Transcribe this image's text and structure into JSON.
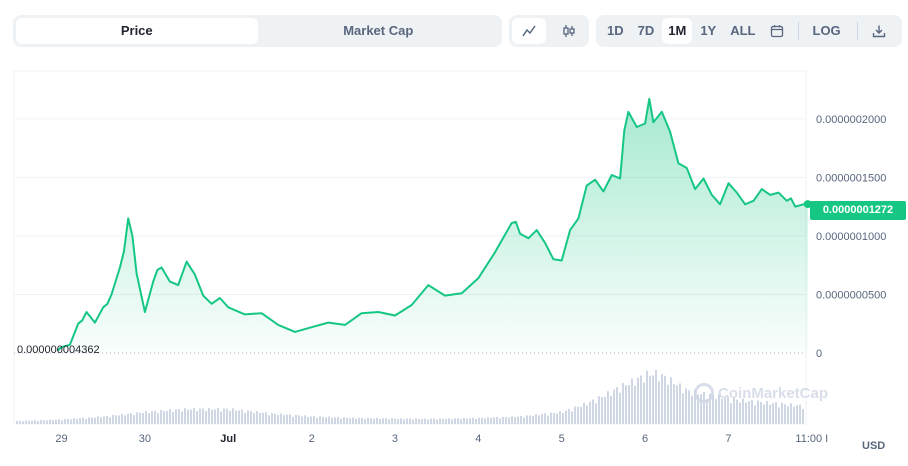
{
  "toolbar": {
    "tabs": [
      {
        "label": "Price",
        "active": true
      },
      {
        "label": "Market Cap",
        "active": false
      }
    ],
    "chart_modes": [
      {
        "icon": "line-chart-icon",
        "active": true
      },
      {
        "icon": "candlestick-icon",
        "active": false
      }
    ],
    "ranges": [
      {
        "label": "1D",
        "active": false
      },
      {
        "label": "7D",
        "active": false
      },
      {
        "label": "1M",
        "active": true
      },
      {
        "label": "1Y",
        "active": false
      },
      {
        "label": "ALL",
        "active": false
      }
    ],
    "calendar_icon": "calendar-icon",
    "log_label": "LOG",
    "download_icon": "download-icon"
  },
  "current_price_label": "0.0000001272",
  "min_price_label": "0.000000004362",
  "currency": "USD",
  "watermark": "CoinMarketCap",
  "colors": {
    "line": "#16c784",
    "volume": "#cfd6e4",
    "grid": "#eff2f5"
  },
  "chart_data": {
    "type": "area",
    "x_labels": [
      "29",
      "30",
      "Jul",
      "2",
      "3",
      "4",
      "5",
      "6",
      "7",
      "11:00 I"
    ],
    "y_ticks": [
      {
        "value": 0,
        "label": "0"
      },
      {
        "value": 5e-08,
        "label": "0.0000000500"
      },
      {
        "value": 1e-07,
        "label": "0.0000001000"
      },
      {
        "value": 1.5e-07,
        "label": "0.0000001500"
      },
      {
        "value": 2e-07,
        "label": "0.0000002000"
      }
    ],
    "ylim": [
      0,
      2.4e-07
    ],
    "x_range": [
      -0.57,
      8.93
    ],
    "series": [
      {
        "x": [
          -0.05,
          0.0,
          0.1,
          0.2,
          0.25,
          0.3,
          0.4,
          0.5,
          0.55,
          0.6,
          0.7,
          0.75,
          0.8,
          0.85,
          0.9,
          1.0,
          1.1,
          1.15,
          1.2,
          1.3,
          1.4,
          1.5,
          1.6,
          1.7,
          1.8,
          1.9,
          2.0,
          2.2,
          2.4,
          2.6,
          2.8,
          3.0,
          3.2,
          3.4,
          3.6,
          3.8,
          4.0,
          4.2,
          4.4,
          4.6,
          4.8,
          5.0,
          5.2,
          5.4,
          5.45,
          5.5,
          5.6,
          5.7,
          5.8,
          5.9,
          6.0,
          6.1,
          6.2,
          6.3,
          6.4,
          6.5,
          6.6,
          6.7,
          6.75,
          6.8,
          6.9,
          7.0,
          7.05,
          7.1,
          7.2,
          7.3,
          7.4,
          7.5,
          7.6,
          7.7,
          7.8,
          7.9,
          8.0,
          8.1,
          8.2,
          8.3,
          8.4,
          8.5,
          8.6,
          8.7,
          8.75,
          8.8,
          8.9,
          8.95
        ],
        "values": [
          2e-09,
          5e-09,
          7e-09,
          2.5e-08,
          2.8e-08,
          3.5e-08,
          2.6e-08,
          3.9e-08,
          4.2e-08,
          5e-08,
          7.3e-08,
          8.7e-08,
          1.15e-07,
          1e-07,
          6.8e-08,
          3.5e-08,
          6.1e-08,
          7.1e-08,
          7.3e-08,
          6.1e-08,
          5.8e-08,
          7.8e-08,
          6.7e-08,
          4.9e-08,
          4.2e-08,
          4.7e-08,
          3.9e-08,
          3.3e-08,
          3.4e-08,
          2.4e-08,
          1.8e-08,
          2.2e-08,
          2.6e-08,
          2.4e-08,
          3.4e-08,
          3.5e-08,
          3.2e-08,
          4.1e-08,
          5.8e-08,
          4.9e-08,
          5.1e-08,
          6.4e-08,
          8.6e-08,
          1.11e-07,
          1.12e-07,
          1.02e-07,
          9.8e-08,
          1.05e-07,
          9.4e-08,
          8e-08,
          7.9e-08,
          1.05e-07,
          1.15e-07,
          1.43e-07,
          1.48e-07,
          1.38e-07,
          1.52e-07,
          1.49e-07,
          1.9e-07,
          2.06e-07,
          1.93e-07,
          1.96e-07,
          2.17e-07,
          1.97e-07,
          2.06e-07,
          1.89e-07,
          1.62e-07,
          1.58e-07,
          1.4e-07,
          1.49e-07,
          1.35e-07,
          1.27e-07,
          1.45e-07,
          1.37e-07,
          1.27e-07,
          1.3e-07,
          1.4e-07,
          1.35e-07,
          1.37e-07,
          1.3e-07,
          1.32e-07,
          1.25e-07,
          1.27e-07,
          1.272e-07
        ]
      }
    ],
    "volume": {
      "x": [
        -0.5,
        0.0,
        0.5,
        1.0,
        1.5,
        2.0,
        2.5,
        3.0,
        3.5,
        4.0,
        4.5,
        5.0,
        5.5,
        6.0,
        6.3,
        6.5,
        6.7,
        6.9,
        7.0,
        7.1,
        7.2,
        7.3,
        7.5,
        7.7,
        7.9,
        8.1,
        8.3,
        8.5,
        8.7,
        8.9
      ],
      "values": [
        0.1,
        0.15,
        0.25,
        0.4,
        0.5,
        0.5,
        0.35,
        0.25,
        0.2,
        0.18,
        0.17,
        0.2,
        0.25,
        0.4,
        0.7,
        0.95,
        1.25,
        1.5,
        1.65,
        1.7,
        1.6,
        1.45,
        1.1,
        1.0,
        0.9,
        0.8,
        0.75,
        0.7,
        0.65,
        0.6
      ]
    }
  }
}
